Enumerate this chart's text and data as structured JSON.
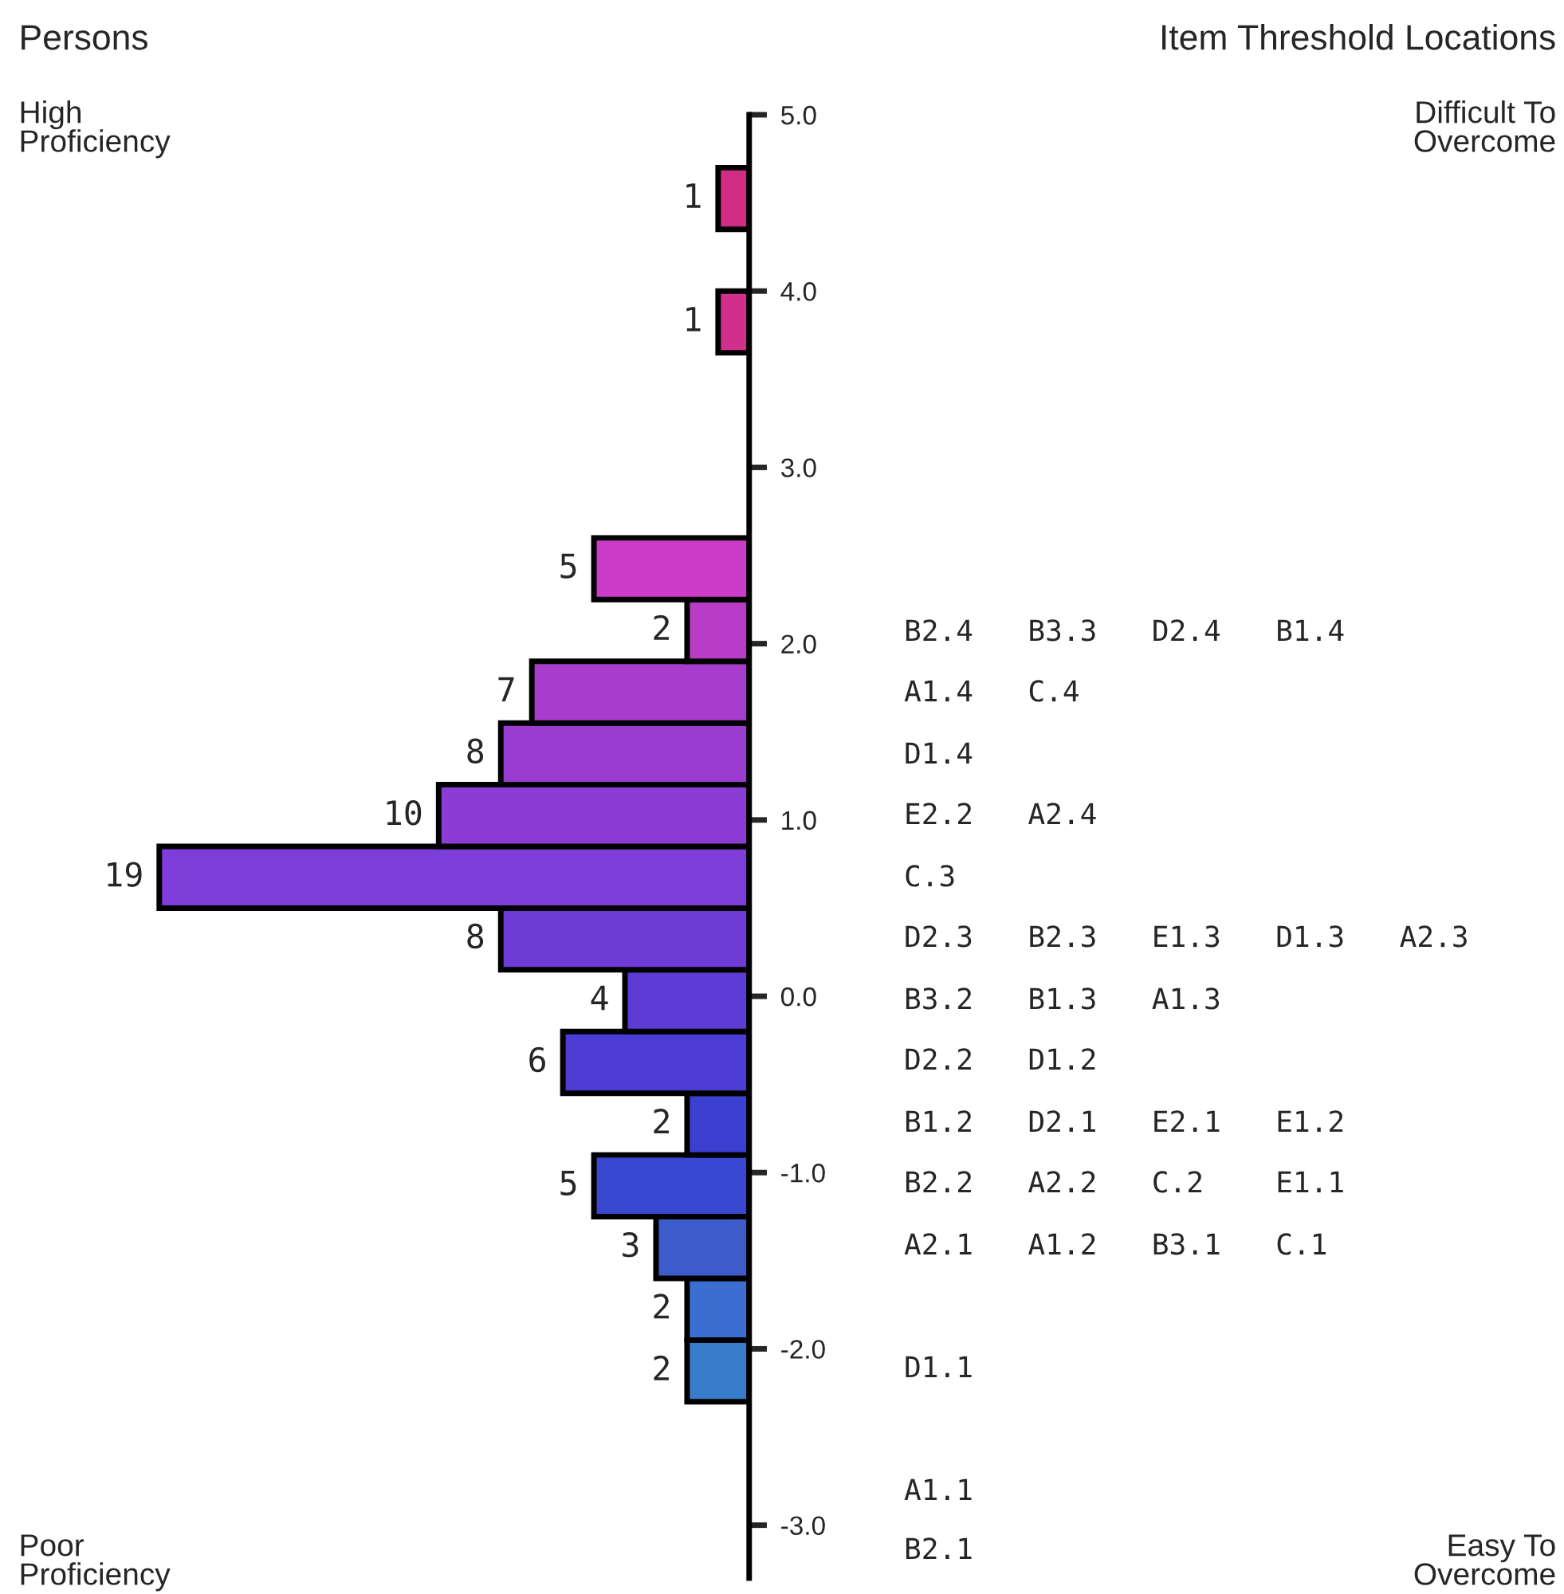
{
  "chart_data": {
    "type": "bar",
    "orientation": "horizontal",
    "x": [
      -2.125,
      -1.775,
      -1.425,
      -1.075,
      -0.725,
      -0.375,
      -0.025,
      0.325,
      0.675,
      1.025,
      1.375,
      1.725,
      2.075,
      2.425,
      3.825,
      4.525
    ],
    "values": [
      2,
      2,
      3,
      5,
      2,
      6,
      4,
      8,
      19,
      10,
      8,
      7,
      2,
      5,
      1,
      1
    ],
    "data_labels": true,
    "colors": [
      "#3a7ccc",
      "#3a6ed0",
      "#3c5ccc",
      "#3848d0",
      "#3c40d0",
      "#4c3cd4",
      "#5c3cd4",
      "#703cd8",
      "#7e3cd8",
      "#8c3cd4",
      "#9a3ccf",
      "#a83ccc",
      "#b83cc8",
      "#cc3cc8",
      "#d0308c",
      "#d02c84"
    ],
    "ylim": [
      -3.3,
      5.0
    ],
    "yticks": [
      {
        "value": -3,
        "label": "-3.0"
      },
      {
        "value": -2,
        "label": "-2.0"
      },
      {
        "value": -1,
        "label": "-1.0"
      },
      {
        "value": 0,
        "label": "0.0"
      },
      {
        "value": 1,
        "label": "1.0"
      },
      {
        "value": 2,
        "label": "2.0"
      },
      {
        "value": 3,
        "label": "3.0"
      },
      {
        "value": 4,
        "label": "4.0"
      },
      {
        "value": 5,
        "label": "5.0"
      }
    ],
    "tick_labels": "y",
    "annotations": [
      "Persons",
      "Item Threshold Locations",
      "High\nProficiency",
      "Difficult To\nOvercome",
      "Poor\nProficiency",
      "Easy To\nOvercome",
      "B2.4",
      "B3.3",
      "D2.4",
      "B1.4",
      "A1.4",
      "C.4",
      "D1.4",
      "E2.2",
      "A2.4",
      "C.3",
      "D2.3",
      "B2.3",
      "E1.3",
      "D1.3",
      "A2.3",
      "B3.2",
      "B1.3",
      "A1.3",
      "D2.2",
      "D1.2",
      "B1.2",
      "D2.1",
      "E2.1",
      "E1.2",
      "B2.2",
      "A2.2",
      "C.2",
      "E1.1",
      "A2.1",
      "A1.2",
      "B3.1",
      "C.1",
      "D1.1",
      "A1.1",
      "B2.1"
    ]
  }
}
